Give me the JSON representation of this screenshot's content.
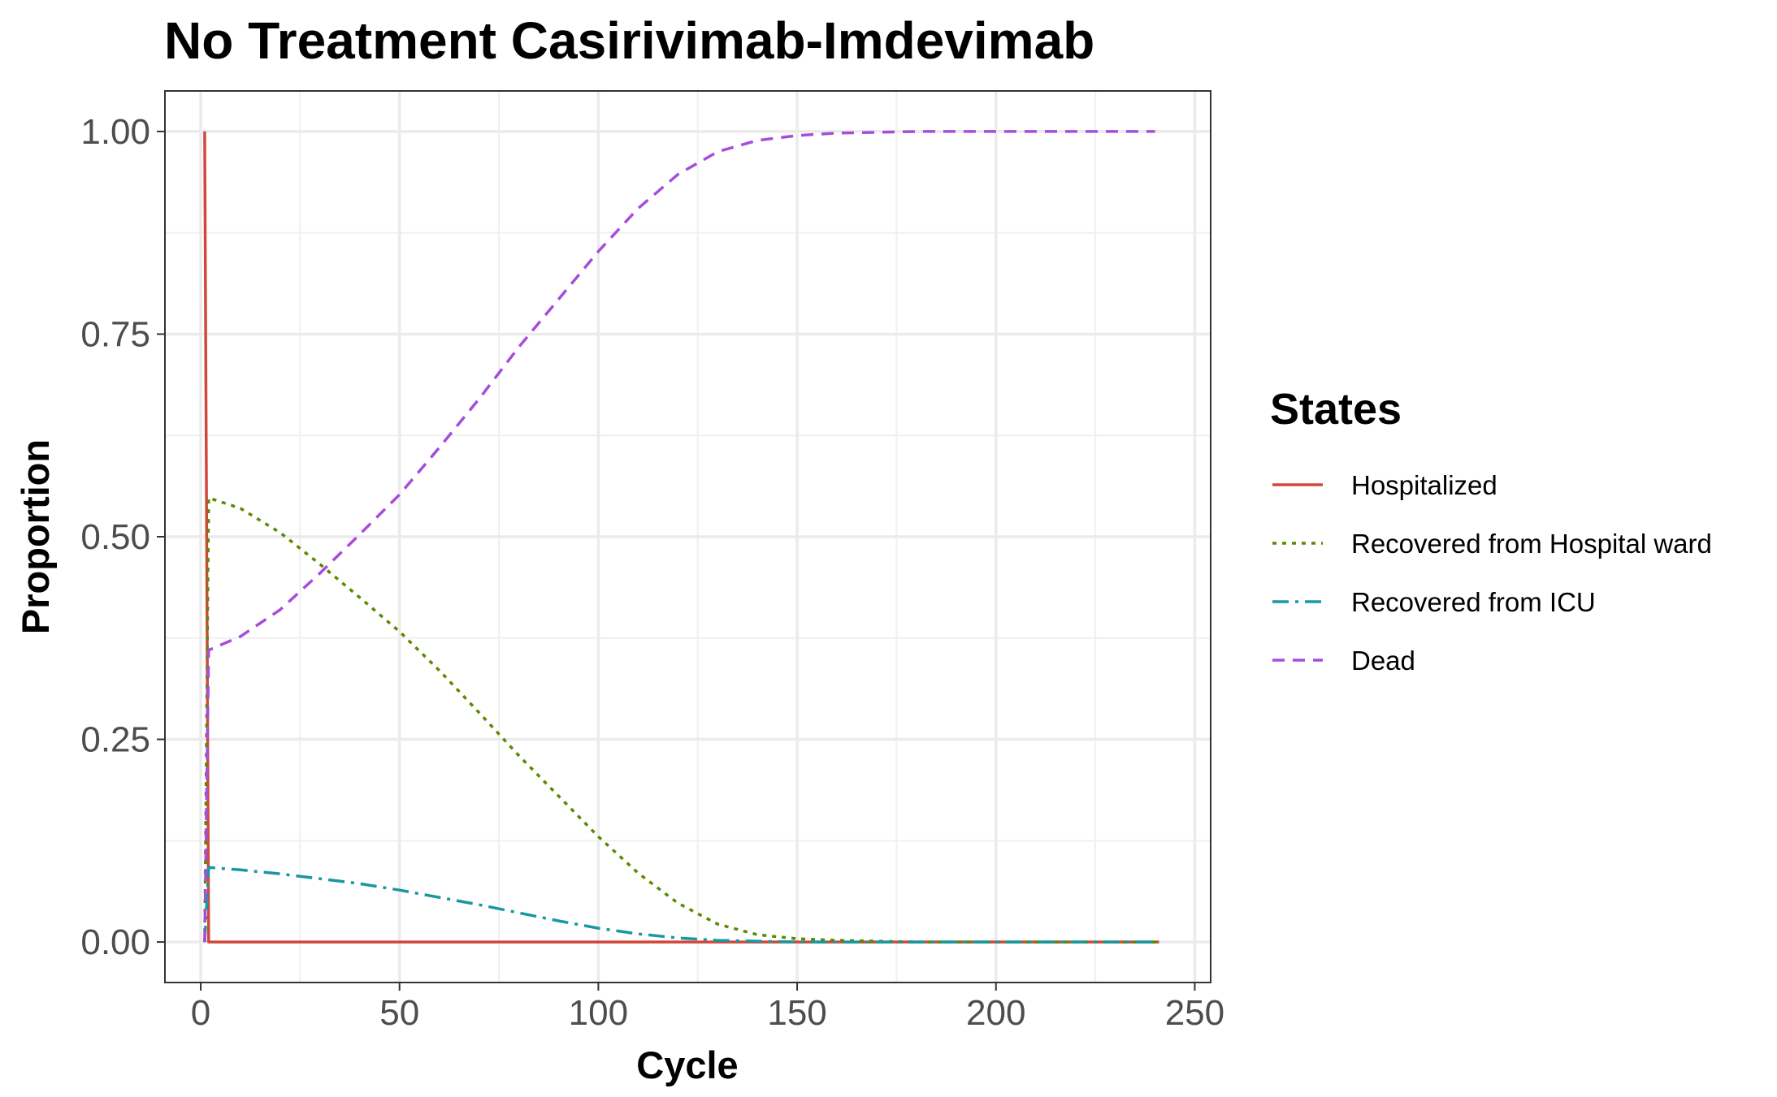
{
  "chart_data": {
    "type": "line",
    "title": "No Treatment Casirivimab-Imdevimab",
    "xlabel": "Cycle",
    "ylabel": "Proportion",
    "xlim": [
      -9,
      254
    ],
    "ylim": [
      -0.05,
      1.05
    ],
    "x_ticks": [
      0,
      50,
      100,
      150,
      200,
      250
    ],
    "x_tick_labels": [
      "0",
      "50",
      "100",
      "150",
      "200",
      "250"
    ],
    "y_ticks": [
      0,
      0.25,
      0.5,
      0.75,
      1.0
    ],
    "y_tick_labels": [
      "0.00",
      "0.25",
      "0.50",
      "0.75",
      "1.00"
    ],
    "grid": true,
    "legend": {
      "title": "States",
      "position": "right"
    },
    "series": [
      {
        "name": "Hospitalized",
        "color": "#d2463c",
        "dash": "solid",
        "x": [
          1,
          2,
          10,
          50,
          100,
          150,
          200,
          241
        ],
        "values": [
          1.0,
          0.0,
          0.0,
          0.0,
          0.0,
          0.0,
          0.0,
          0.0
        ]
      },
      {
        "name": "Recovered from Hospital ward",
        "color": "#5a8a00",
        "dash": "dotted",
        "x": [
          1,
          2,
          10,
          20,
          30,
          40,
          50,
          60,
          70,
          80,
          90,
          100,
          110,
          120,
          130,
          140,
          150,
          160,
          170,
          180,
          200,
          220,
          241
        ],
        "values": [
          0.0,
          0.548,
          0.535,
          0.505,
          0.466,
          0.425,
          0.383,
          0.335,
          0.283,
          0.23,
          0.18,
          0.13,
          0.085,
          0.048,
          0.022,
          0.009,
          0.004,
          0.002,
          0.001,
          0.0,
          0.0,
          0.0,
          0.0
        ]
      },
      {
        "name": "Recovered from ICU",
        "color": "#1898a0",
        "dash": "dashdot",
        "x": [
          1,
          2,
          10,
          20,
          30,
          40,
          50,
          60,
          70,
          80,
          90,
          100,
          110,
          120,
          130,
          140,
          150,
          160,
          180,
          200,
          220,
          241
        ],
        "values": [
          0.0,
          0.092,
          0.089,
          0.084,
          0.078,
          0.072,
          0.064,
          0.055,
          0.046,
          0.036,
          0.026,
          0.017,
          0.01,
          0.005,
          0.002,
          0.001,
          0.0,
          0.0,
          0.0,
          0.0,
          0.0,
          0.0
        ]
      },
      {
        "name": "Dead",
        "color": "#a64ddb",
        "dash": "dashed",
        "x": [
          1,
          2,
          10,
          20,
          30,
          40,
          50,
          60,
          70,
          80,
          90,
          100,
          110,
          120,
          130,
          140,
          150,
          160,
          170,
          180,
          200,
          220,
          240
        ],
        "values": [
          0.0,
          0.36,
          0.377,
          0.41,
          0.455,
          0.503,
          0.552,
          0.61,
          0.67,
          0.734,
          0.793,
          0.852,
          0.905,
          0.947,
          0.975,
          0.989,
          0.995,
          0.998,
          0.999,
          1.0,
          1.0,
          1.0,
          1.0
        ]
      }
    ]
  }
}
